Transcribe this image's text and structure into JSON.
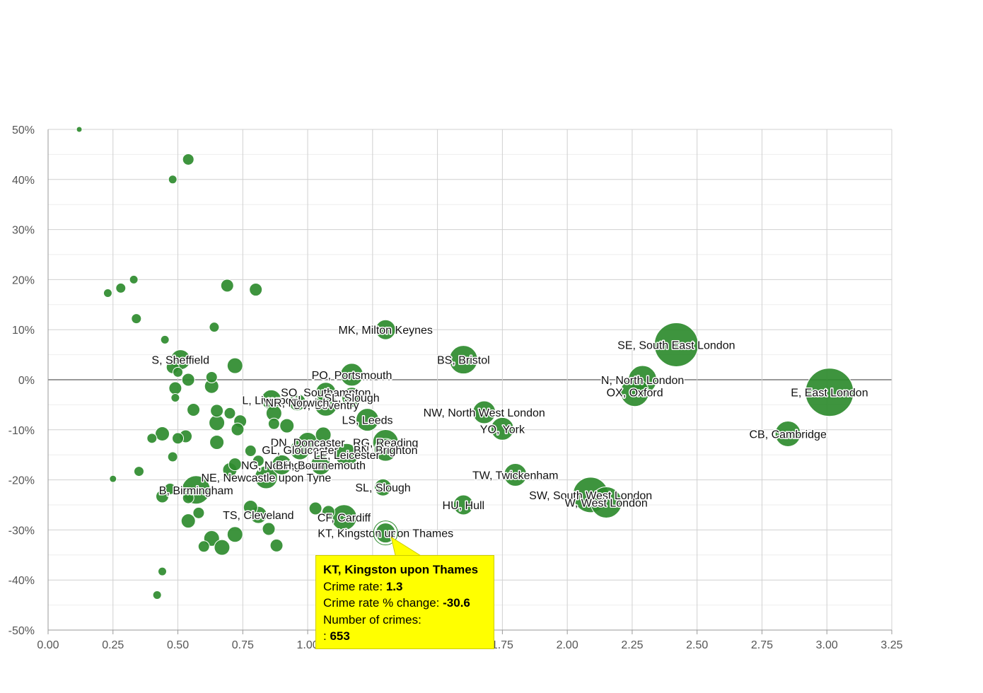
{
  "chart_data": {
    "type": "scatter",
    "title": "",
    "xlabel": "",
    "ylabel": "",
    "xlim": [
      0,
      3.25
    ],
    "ylim": [
      -50,
      50
    ],
    "x_ticks": [
      "0.00",
      "0.25",
      "0.50",
      "0.75",
      "1.00",
      "1.25",
      "1.50",
      "1.75",
      "2.00",
      "2.25",
      "2.50",
      "2.75",
      "3.00",
      "3.25"
    ],
    "y_ticks": [
      "-50%",
      "-40%",
      "-30%",
      "-20%",
      "-10%",
      "0%",
      "10%",
      "20%",
      "30%",
      "40%",
      "50%"
    ],
    "grid": true,
    "bubble_color": "#2e8b2e",
    "labeled_points": [
      {
        "label": "MK, Milton Keynes",
        "x": 1.3,
        "y": 10.0,
        "size": 14
      },
      {
        "label": "SE, South East London",
        "x": 2.42,
        "y": 7.0,
        "size": 31
      },
      {
        "label": "BS, Bristol",
        "x": 1.6,
        "y": 4.0,
        "size": 20
      },
      {
        "label": "S, Sheffield",
        "x": 0.51,
        "y": 4.0,
        "size": 14
      },
      {
        "label": "PO, Portsmouth",
        "x": 1.17,
        "y": 1.0,
        "size": 16
      },
      {
        "label": "N, North London",
        "x": 2.29,
        "y": 0.0,
        "size": 20
      },
      {
        "label": "OX, Oxford",
        "x": 2.26,
        "y": -2.5,
        "size": 20
      },
      {
        "label": "E, East London",
        "x": 3.01,
        "y": -2.5,
        "size": 34
      },
      {
        "label": "SO, Southampton",
        "x": 1.07,
        "y": -2.5,
        "size": 14
      },
      {
        "label": "SL, Slough (partial)",
        "x": 1.17,
        "y": -3.5,
        "size": 14
      },
      {
        "label": "CV, Coventry",
        "x": 1.07,
        "y": -5.0,
        "size": 16
      },
      {
        "label": "L, Liverpool",
        "x": 0.86,
        "y": -4.0,
        "size": 14
      },
      {
        "label": "NR, Norwich",
        "x": 0.96,
        "y": -4.5,
        "size": 12
      },
      {
        "label": "NW, North West London",
        "x": 1.68,
        "y": -6.5,
        "size": 16
      },
      {
        "label": "LS, Leeds",
        "x": 1.23,
        "y": -8.0,
        "size": 16
      },
      {
        "label": "YO, York",
        "x": 1.75,
        "y": -9.8,
        "size": 16
      },
      {
        "label": "CB, Cambridge",
        "x": 2.85,
        "y": -10.8,
        "size": 18
      },
      {
        "label": "DN, Doncaster",
        "x": 1.0,
        "y": -12.5,
        "size": 14
      },
      {
        "label": "RG, Reading",
        "x": 1.3,
        "y": -12.5,
        "size": 18
      },
      {
        "label": "GL, Gloucester",
        "x": 0.97,
        "y": -14.0,
        "size": 14
      },
      {
        "label": "BN, Brighton",
        "x": 1.3,
        "y": -14.0,
        "size": 16
      },
      {
        "label": "LE, Leicester",
        "x": 1.15,
        "y": -15.0,
        "size": 16
      },
      {
        "label": "NG, Nottingham",
        "x": 0.9,
        "y": -17.0,
        "size": 14
      },
      {
        "label": "BH, Bournemouth",
        "x": 1.05,
        "y": -17.0,
        "size": 14
      },
      {
        "label": "NE, Newcastle upon Tyne",
        "x": 0.84,
        "y": -19.5,
        "size": 16
      },
      {
        "label": "TW, Twickenham",
        "x": 1.8,
        "y": -19.0,
        "size": 16
      },
      {
        "label": "SL, Slough",
        "x": 1.29,
        "y": -21.5,
        "size": 12
      },
      {
        "label": "B, Birmingham",
        "x": 0.57,
        "y": -22.0,
        "size": 20
      },
      {
        "label": "SW, South West London",
        "x": 2.09,
        "y": -23.0,
        "size": 25
      },
      {
        "label": "W, West London",
        "x": 2.15,
        "y": -24.5,
        "size": 22
      },
      {
        "label": "HU, Hull",
        "x": 1.6,
        "y": -25.0,
        "size": 14
      },
      {
        "label": "TS, Cleveland",
        "x": 0.81,
        "y": -27.0,
        "size": 12
      },
      {
        "label": "CF, Cardiff",
        "x": 1.14,
        "y": -27.5,
        "size": 18
      },
      {
        "label": "KT, Kingston upon Thames",
        "x": 1.3,
        "y": -30.6,
        "size": 14
      }
    ],
    "unlabeled_points": [
      {
        "x": 0.12,
        "y": 50.0,
        "size": 4
      },
      {
        "x": 0.54,
        "y": 44.0,
        "size": 8
      },
      {
        "x": 0.48,
        "y": 40.0,
        "size": 6
      },
      {
        "x": 0.23,
        "y": 17.3,
        "size": 6
      },
      {
        "x": 0.28,
        "y": 18.3,
        "size": 7
      },
      {
        "x": 0.33,
        "y": 20.0,
        "size": 6
      },
      {
        "x": 0.69,
        "y": 18.8,
        "size": 9
      },
      {
        "x": 0.8,
        "y": 18.0,
        "size": 9
      },
      {
        "x": 0.34,
        "y": 12.2,
        "size": 7
      },
      {
        "x": 0.64,
        "y": 10.5,
        "size": 7
      },
      {
        "x": 0.45,
        "y": 8.0,
        "size": 6
      },
      {
        "x": 0.72,
        "y": 2.8,
        "size": 11
      },
      {
        "x": 0.48,
        "y": 2.5,
        "size": 9
      },
      {
        "x": 0.5,
        "y": 1.5,
        "size": 7
      },
      {
        "x": 0.63,
        "y": 0.5,
        "size": 8
      },
      {
        "x": 0.54,
        "y": 0.0,
        "size": 9
      },
      {
        "x": 0.63,
        "y": -1.3,
        "size": 10
      },
      {
        "x": 0.49,
        "y": -1.7,
        "size": 9
      },
      {
        "x": 0.49,
        "y": -3.6,
        "size": 6
      },
      {
        "x": 0.56,
        "y": -6.0,
        "size": 9
      },
      {
        "x": 0.65,
        "y": -6.2,
        "size": 9
      },
      {
        "x": 0.7,
        "y": -6.7,
        "size": 8
      },
      {
        "x": 0.87,
        "y": -6.7,
        "size": 11
      },
      {
        "x": 0.74,
        "y": -8.3,
        "size": 9
      },
      {
        "x": 0.65,
        "y": -8.6,
        "size": 11
      },
      {
        "x": 0.87,
        "y": -8.8,
        "size": 8
      },
      {
        "x": 0.92,
        "y": -9.2,
        "size": 10
      },
      {
        "x": 0.73,
        "y": -9.9,
        "size": 9
      },
      {
        "x": 0.44,
        "y": -10.8,
        "size": 10
      },
      {
        "x": 0.53,
        "y": -11.3,
        "size": 9
      },
      {
        "x": 0.5,
        "y": -11.7,
        "size": 8
      },
      {
        "x": 0.4,
        "y": -11.7,
        "size": 7
      },
      {
        "x": 1.06,
        "y": -11.0,
        "size": 11
      },
      {
        "x": 0.65,
        "y": -12.5,
        "size": 10
      },
      {
        "x": 0.78,
        "y": -14.2,
        "size": 8
      },
      {
        "x": 0.48,
        "y": -15.4,
        "size": 7
      },
      {
        "x": 0.81,
        "y": -16.2,
        "size": 8
      },
      {
        "x": 0.72,
        "y": -16.9,
        "size": 9
      },
      {
        "x": 0.7,
        "y": -18.0,
        "size": 10
      },
      {
        "x": 0.35,
        "y": -18.3,
        "size": 7
      },
      {
        "x": 0.25,
        "y": -19.8,
        "size": 5
      },
      {
        "x": 0.47,
        "y": -21.8,
        "size": 8
      },
      {
        "x": 0.44,
        "y": -23.3,
        "size": 9
      },
      {
        "x": 0.54,
        "y": -23.6,
        "size": 8
      },
      {
        "x": 0.78,
        "y": -25.5,
        "size": 10
      },
      {
        "x": 1.03,
        "y": -25.7,
        "size": 9
      },
      {
        "x": 1.08,
        "y": -26.4,
        "size": 9
      },
      {
        "x": 0.58,
        "y": -26.6,
        "size": 8
      },
      {
        "x": 0.54,
        "y": -28.2,
        "size": 10
      },
      {
        "x": 0.85,
        "y": -29.8,
        "size": 9
      },
      {
        "x": 0.72,
        "y": -30.9,
        "size": 11
      },
      {
        "x": 0.63,
        "y": -31.7,
        "size": 11
      },
      {
        "x": 0.67,
        "y": -33.5,
        "size": 11
      },
      {
        "x": 0.6,
        "y": -33.3,
        "size": 8
      },
      {
        "x": 0.88,
        "y": -33.1,
        "size": 9
      },
      {
        "x": 0.44,
        "y": -38.3,
        "size": 6
      },
      {
        "x": 0.42,
        "y": -43.0,
        "size": 6
      }
    ]
  },
  "tooltip": {
    "title": "KT, Kingston upon Thames",
    "crime_rate_label": "Crime rate:",
    "crime_rate_value": "1.3",
    "change_label": "Crime rate % change:",
    "change_value": "-30.6",
    "crimes_label": "Number of crimes:",
    "crimes_prefix": ":",
    "crimes_value": "653"
  }
}
